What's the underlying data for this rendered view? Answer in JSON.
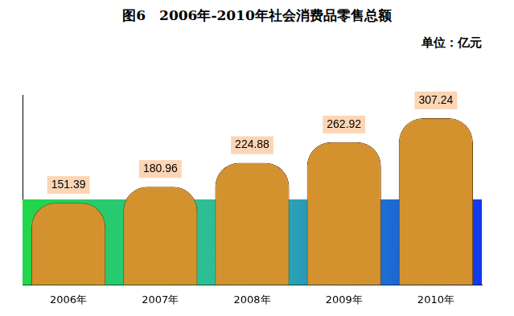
{
  "chart_data": {
    "type": "bar",
    "title": "图6　2006年-2010年社会消费品零售总额",
    "subtitle": "单位：亿元",
    "categories": [
      "2006年",
      "2007年",
      "2008年",
      "2009年",
      "2010年"
    ],
    "values": [
      151.39,
      180.96,
      224.88,
      262.92,
      307.24
    ],
    "color": "#d4922e",
    "ylim": [
      0,
      350
    ],
    "grid": false,
    "data_labels": true,
    "tick_labels": "x"
  }
}
